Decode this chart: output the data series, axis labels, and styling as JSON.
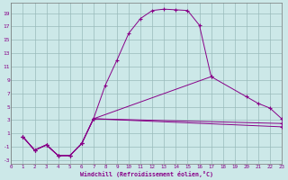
{
  "xlabel": "Windchill (Refroidissement éolien,°C)",
  "bg_color": "#cce8e8",
  "line_color": "#880088",
  "grid_color": "#99bbbb",
  "xlim": [
    0,
    23
  ],
  "ylim": [
    -3.5,
    20.5
  ],
  "xticks": [
    0,
    1,
    2,
    3,
    4,
    5,
    6,
    7,
    8,
    9,
    10,
    11,
    12,
    13,
    14,
    15,
    16,
    17,
    18,
    19,
    20,
    21,
    22,
    23
  ],
  "yticks": [
    -3,
    -1,
    1,
    3,
    5,
    7,
    9,
    11,
    13,
    15,
    17,
    19
  ],
  "curve1_x": [
    1,
    2,
    3,
    4,
    5,
    6,
    7,
    8,
    9,
    10,
    11,
    12,
    13,
    14,
    15,
    16,
    17
  ],
  "curve1_y": [
    0.5,
    -1.5,
    -0.7,
    -2.3,
    -2.3,
    -0.5,
    3.2,
    8.2,
    12.0,
    16.0,
    18.2,
    19.4,
    19.6,
    19.5,
    19.4,
    17.2,
    9.5
  ],
  "curve2_x": [
    1,
    2,
    3,
    4,
    5,
    6,
    7,
    17,
    20,
    21,
    22,
    23
  ],
  "curve2_y": [
    0.5,
    -1.5,
    -0.7,
    -2.3,
    -2.3,
    -0.5,
    3.2,
    9.5,
    6.5,
    5.5,
    4.8,
    3.2
  ],
  "curve3_x": [
    1,
    2,
    3,
    4,
    5,
    6,
    7,
    23
  ],
  "curve3_y": [
    0.5,
    -1.5,
    -0.7,
    -2.3,
    -2.3,
    -0.5,
    3.2,
    2.5
  ],
  "curve4_x": [
    1,
    2,
    3,
    4,
    5,
    6,
    7,
    23
  ],
  "curve4_y": [
    0.5,
    -1.5,
    -0.7,
    -2.3,
    -2.3,
    -0.5,
    3.2,
    2.0
  ]
}
